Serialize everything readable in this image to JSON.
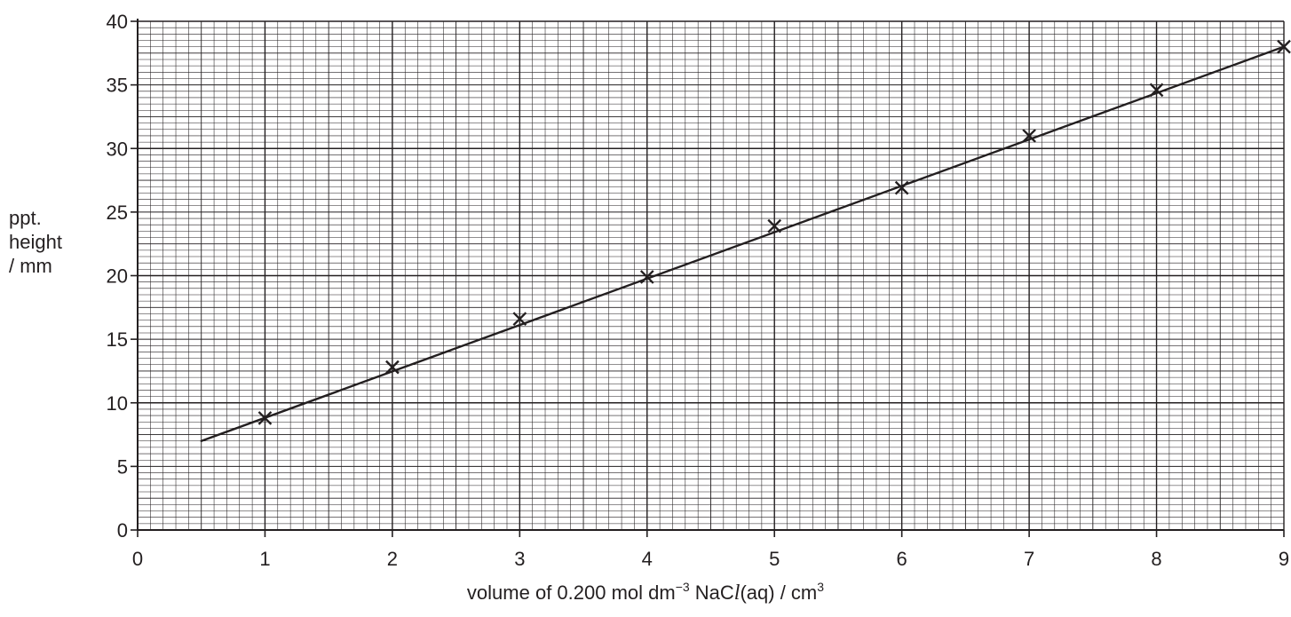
{
  "chart_data": {
    "type": "scatter",
    "x": [
      1,
      2,
      3,
      4,
      5,
      6,
      7,
      8,
      9
    ],
    "y": [
      8.8,
      12.8,
      16.6,
      19.9,
      23.9,
      26.9,
      31.0,
      34.6,
      38.0
    ],
    "best_fit_line": {
      "from": [
        0.5,
        7.0
      ],
      "to": [
        9,
        38.0
      ]
    },
    "x_ticks": [
      "0",
      "1",
      "2",
      "3",
      "4",
      "5",
      "6",
      "7",
      "8",
      "9"
    ],
    "y_ticks": [
      "0",
      "5",
      "10",
      "15",
      "20",
      "25",
      "30",
      "35",
      "40"
    ],
    "xlim": [
      0,
      9
    ],
    "ylim": [
      0,
      40
    ],
    "grid": true,
    "marker": "cross",
    "ylabel": {
      "line1": "ppt.",
      "line2": "height",
      "line3": "/ mm"
    },
    "xlabel": {
      "prefix": "volume of 0.200 mol dm",
      "exp1": "−3",
      "mid": " NaC",
      "italic": "l",
      "suffix": "(aq) / cm",
      "exp2": "3"
    }
  }
}
